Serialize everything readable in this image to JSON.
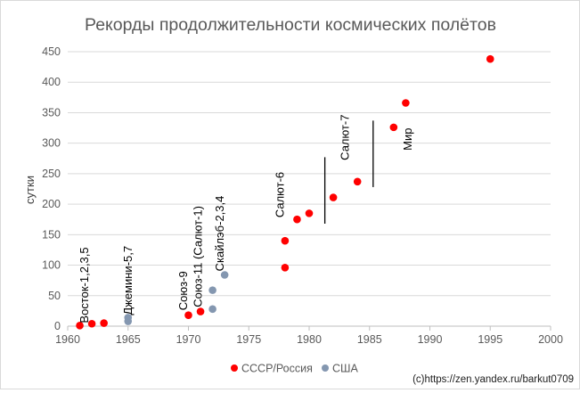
{
  "chart_data": {
    "type": "scatter",
    "title": "Рекорды продолжительности космических полётов",
    "ylabel": "сутки",
    "xlabel": "",
    "xlim": [
      1960,
      2000
    ],
    "ylim": [
      0,
      450
    ],
    "x_ticks": [
      1960,
      1965,
      1970,
      1975,
      1980,
      1985,
      1990,
      1995,
      2000
    ],
    "y_ticks": [
      0,
      50,
      100,
      150,
      200,
      250,
      300,
      350,
      400,
      450
    ],
    "grid": "horizontal",
    "legend_position": "bottom",
    "series": [
      {
        "name": "СССР/Россия",
        "color": "#ff0000",
        "points": [
          {
            "x": 1961,
            "y": 1
          },
          {
            "x": 1962,
            "y": 4
          },
          {
            "x": 1963,
            "y": 5
          },
          {
            "x": 1970,
            "y": 18
          },
          {
            "x": 1971,
            "y": 24
          },
          {
            "x": 1978,
            "y": 96
          },
          {
            "x": 1978,
            "y": 140
          },
          {
            "x": 1979,
            "y": 175
          },
          {
            "x": 1980,
            "y": 185
          },
          {
            "x": 1982,
            "y": 211
          },
          {
            "x": 1984,
            "y": 237
          },
          {
            "x": 1987,
            "y": 326
          },
          {
            "x": 1988,
            "y": 366
          },
          {
            "x": 1995,
            "y": 438
          }
        ]
      },
      {
        "name": "США",
        "color": "#8497b0",
        "points": [
          {
            "x": 1965,
            "y": 8
          },
          {
            "x": 1965,
            "y": 14
          },
          {
            "x": 1972,
            "y": 28
          },
          {
            "x": 1972,
            "y": 59
          },
          {
            "x": 1973,
            "y": 84
          }
        ]
      }
    ],
    "annotations": [
      {
        "text": "Восток-1,2,3,5",
        "x": 1961.7,
        "y": 5
      },
      {
        "text": "Джемини-5,7",
        "x": 1965.3,
        "y": 18
      },
      {
        "text": "Союз-9",
        "x": 1969.9,
        "y": 26
      },
      {
        "text": "Союз-11 (Салют-1)",
        "x": 1971.1,
        "y": 31
      },
      {
        "text": "Скайлэб-2,3,4",
        "x": 1972.9,
        "y": 90
      },
      {
        "text": "Салют-6",
        "x": 1977.9,
        "y": 178
      },
      {
        "text": "Салют-7",
        "x": 1983.3,
        "y": 272
      },
      {
        "text": "Мир",
        "x": 1988.5,
        "y": 288
      }
    ],
    "vertical_lines": [
      {
        "x": 1981.3,
        "y_from": 168,
        "y_to": 277
      },
      {
        "x": 1985.3,
        "y_from": 228,
        "y_to": 337
      }
    ]
  },
  "credit": "(c)https://zen.yandex.ru/barkut0709"
}
